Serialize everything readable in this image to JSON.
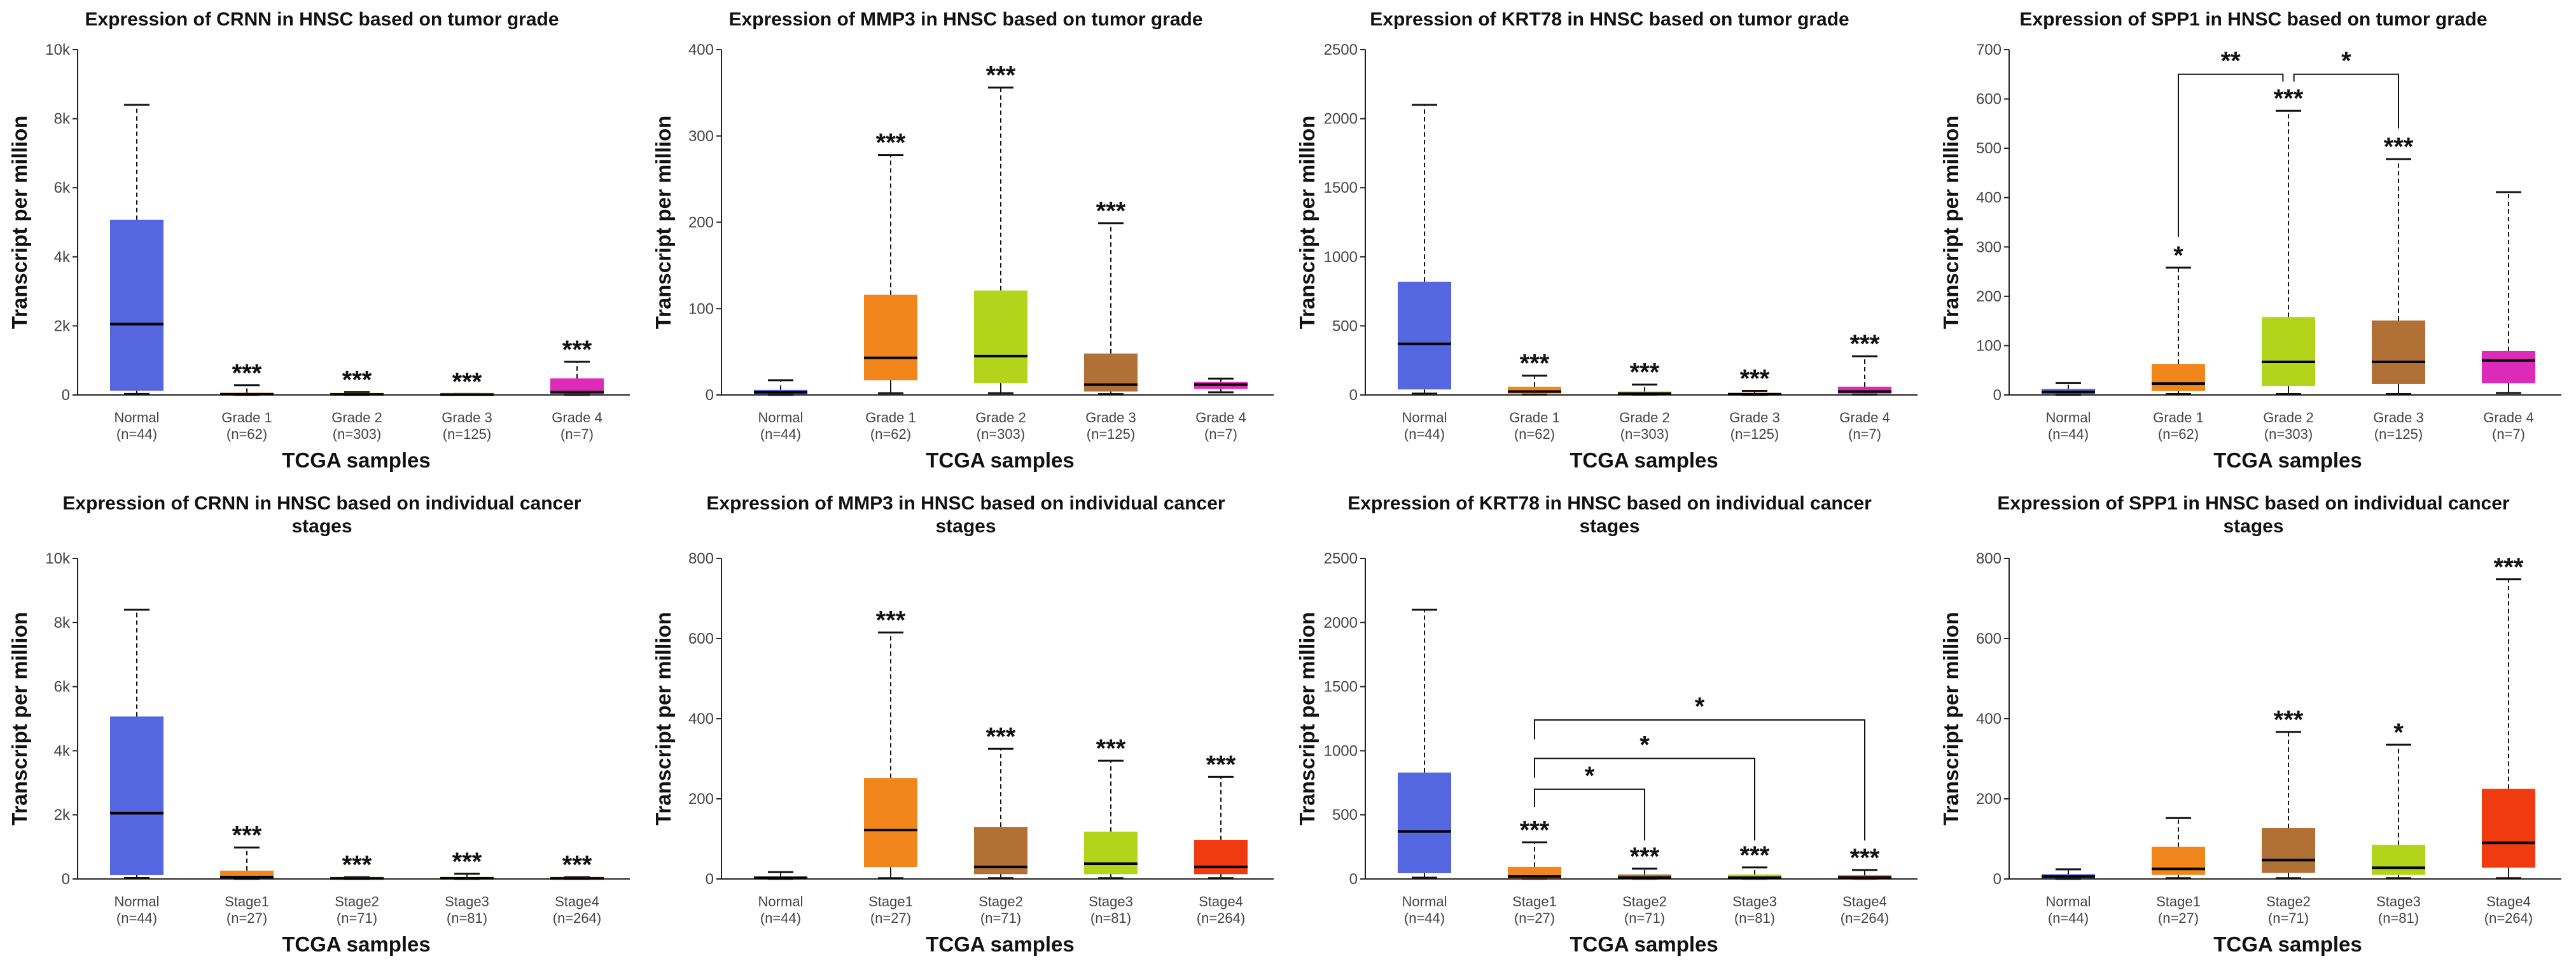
{
  "chart_data": [
    {
      "type": "box",
      "title": [
        "Expression of CRNN in HNSC based on tumor grade"
      ],
      "xlabel": "TCGA samples",
      "ylabel": "Transcript per million",
      "ylim": [
        0,
        10000
      ],
      "yticks": [
        0,
        2000,
        4000,
        6000,
        8000,
        10000
      ],
      "ytick_labels": [
        "0",
        "2k",
        "4k",
        "6k",
        "8k",
        "10k"
      ],
      "categories": [
        [
          "Normal",
          "(n=44)"
        ],
        [
          "Grade 1",
          "(n=62)"
        ],
        [
          "Grade 2",
          "(n=303)"
        ],
        [
          "Grade 3",
          "(n=125)"
        ],
        [
          "Grade 4",
          "(n=7)"
        ]
      ],
      "boxes": [
        {
          "low": 30,
          "q1": 120,
          "median": 2050,
          "q3": 5070,
          "high": 8400,
          "color": "#5567e0",
          "sig": ""
        },
        {
          "low": 0,
          "q1": 10,
          "median": 20,
          "q3": 60,
          "high": 280,
          "color": "#f0861c",
          "sig": "***"
        },
        {
          "low": 0,
          "q1": 5,
          "median": 15,
          "q3": 30,
          "high": 80,
          "color": "#b3d41a",
          "sig": "***"
        },
        {
          "low": 0,
          "q1": 3,
          "median": 8,
          "q3": 15,
          "high": 30,
          "color": "#b07036",
          "sig": "***"
        },
        {
          "low": 0,
          "q1": 30,
          "median": 80,
          "q3": 480,
          "high": 960,
          "color": "#dd2ab8",
          "sig": "***"
        }
      ],
      "brackets": []
    },
    {
      "type": "box",
      "title": [
        "Expression of MMP3 in HNSC based on tumor grade"
      ],
      "xlabel": "TCGA samples",
      "ylabel": "Transcript per million",
      "ylim": [
        0,
        400
      ],
      "yticks": [
        0,
        100,
        200,
        300,
        400
      ],
      "ytick_labels": [
        "0",
        "100",
        "200",
        "300",
        "400"
      ],
      "categories": [
        [
          "Normal",
          "(n=44)"
        ],
        [
          "Grade 1",
          "(n=62)"
        ],
        [
          "Grade 2",
          "(n=303)"
        ],
        [
          "Grade 3",
          "(n=125)"
        ],
        [
          "Grade 4",
          "(n=7)"
        ]
      ],
      "boxes": [
        {
          "low": 0,
          "q1": 1,
          "median": 3,
          "q3": 6,
          "high": 17,
          "color": "#5567e0",
          "sig": ""
        },
        {
          "low": 2,
          "q1": 17,
          "median": 43,
          "q3": 116,
          "high": 278,
          "color": "#f0861c",
          "sig": "***"
        },
        {
          "low": 2,
          "q1": 14,
          "median": 45,
          "q3": 121,
          "high": 356,
          "color": "#b3d41a",
          "sig": "***"
        },
        {
          "low": 1,
          "q1": 4,
          "median": 12,
          "q3": 48,
          "high": 199,
          "color": "#b07036",
          "sig": "***"
        },
        {
          "low": 3,
          "q1": 7,
          "median": 12,
          "q3": 15,
          "high": 19,
          "color": "#dd2ab8",
          "sig": ""
        }
      ],
      "brackets": []
    },
    {
      "type": "box",
      "title": [
        "Expression of KRT78 in HNSC based on tumor grade"
      ],
      "xlabel": "TCGA samples",
      "ylabel": "Transcript per million",
      "ylim": [
        0,
        2500
      ],
      "yticks": [
        0,
        500,
        1000,
        1500,
        2000,
        2500
      ],
      "ytick_labels": [
        "0",
        "500",
        "1000",
        "1500",
        "2000",
        "2500"
      ],
      "categories": [
        [
          "Normal",
          "(n=44)"
        ],
        [
          "Grade 1",
          "(n=62)"
        ],
        [
          "Grade 2",
          "(n=303)"
        ],
        [
          "Grade 3",
          "(n=125)"
        ],
        [
          "Grade 4",
          "(n=7)"
        ]
      ],
      "boxes": [
        {
          "low": 10,
          "q1": 40,
          "median": 370,
          "q3": 820,
          "high": 2100,
          "color": "#5567e0",
          "sig": ""
        },
        {
          "low": 2,
          "q1": 10,
          "median": 25,
          "q3": 60,
          "high": 140,
          "color": "#f0861c",
          "sig": "***"
        },
        {
          "low": 1,
          "q1": 5,
          "median": 10,
          "q3": 25,
          "high": 75,
          "color": "#b3d41a",
          "sig": "***"
        },
        {
          "low": 0,
          "q1": 2,
          "median": 5,
          "q3": 10,
          "high": 30,
          "color": "#b07036",
          "sig": "***"
        },
        {
          "low": 2,
          "q1": 10,
          "median": 25,
          "q3": 60,
          "high": 280,
          "color": "#dd2ab8",
          "sig": "***"
        }
      ],
      "brackets": []
    },
    {
      "type": "box",
      "title": [
        "Expression of SPP1 in HNSC based on tumor grade"
      ],
      "xlabel": "TCGA samples",
      "ylabel": "Transcript per million",
      "ylim": [
        0,
        700
      ],
      "yticks": [
        0,
        100,
        200,
        300,
        400,
        500,
        600,
        700
      ],
      "ytick_labels": [
        "0",
        "100",
        "200",
        "300",
        "400",
        "500",
        "600",
        "700"
      ],
      "categories": [
        [
          "Normal",
          "(n=44)"
        ],
        [
          "Grade 1",
          "(n=62)"
        ],
        [
          "Grade 2",
          "(n=303)"
        ],
        [
          "Grade 3",
          "(n=125)"
        ],
        [
          "Grade 4",
          "(n=7)"
        ]
      ],
      "boxes": [
        {
          "low": 0,
          "q1": 2,
          "median": 6,
          "q3": 12,
          "high": 24,
          "color": "#5567e0",
          "sig": ""
        },
        {
          "low": 2,
          "q1": 8,
          "median": 23,
          "q3": 63,
          "high": 258,
          "color": "#f0861c",
          "sig": "*"
        },
        {
          "low": 2,
          "q1": 18,
          "median": 67,
          "q3": 158,
          "high": 576,
          "color": "#b3d41a",
          "sig": "***"
        },
        {
          "low": 2,
          "q1": 22,
          "median": 67,
          "q3": 151,
          "high": 478,
          "color": "#b07036",
          "sig": "***"
        },
        {
          "low": 4,
          "q1": 24,
          "median": 70,
          "q3": 89,
          "high": 411,
          "color": "#dd2ab8",
          "sig": ""
        }
      ],
      "brackets": [
        {
          "from": 1,
          "to": 1.95,
          "y": 650,
          "left_end": 320,
          "right_end": 635,
          "label": "**"
        },
        {
          "from": 2.05,
          "to": 3,
          "y": 650,
          "left_end": 635,
          "right_end": 540,
          "label": "*"
        }
      ]
    },
    {
      "type": "box",
      "title": [
        "Expression of CRNN in HNSC based on individual cancer",
        "stages"
      ],
      "xlabel": "TCGA samples",
      "ylabel": "Transcript per million",
      "ylim": [
        0,
        10000
      ],
      "yticks": [
        0,
        2000,
        4000,
        6000,
        8000,
        10000
      ],
      "ytick_labels": [
        "0",
        "2k",
        "4k",
        "6k",
        "8k",
        "10k"
      ],
      "categories": [
        [
          "Normal",
          "(n=44)"
        ],
        [
          "Stage1",
          "(n=27)"
        ],
        [
          "Stage2",
          "(n=71)"
        ],
        [
          "Stage3",
          "(n=81)"
        ],
        [
          "Stage4",
          "(n=264)"
        ]
      ],
      "boxes": [
        {
          "low": 30,
          "q1": 120,
          "median": 2050,
          "q3": 5070,
          "high": 8400,
          "color": "#5567e0",
          "sig": ""
        },
        {
          "low": 0,
          "q1": 20,
          "median": 60,
          "q3": 260,
          "high": 980,
          "color": "#f0861c",
          "sig": "***"
        },
        {
          "low": 0,
          "q1": 5,
          "median": 15,
          "q3": 30,
          "high": 60,
          "color": "#b07036",
          "sig": "***"
        },
        {
          "low": 0,
          "q1": 8,
          "median": 20,
          "q3": 50,
          "high": 160,
          "color": "#b3d41a",
          "sig": "***"
        },
        {
          "low": 0,
          "q1": 5,
          "median": 15,
          "q3": 30,
          "high": 60,
          "color": "#f03a10",
          "sig": "***"
        }
      ],
      "brackets": []
    },
    {
      "type": "box",
      "title": [
        "Expression of MMP3 in HNSC based on individual cancer",
        "stages"
      ],
      "xlabel": "TCGA samples",
      "ylabel": "Transcript per million",
      "ylim": [
        0,
        800
      ],
      "yticks": [
        0,
        200,
        400,
        600,
        800
      ],
      "ytick_labels": [
        "0",
        "200",
        "400",
        "600",
        "800"
      ],
      "categories": [
        [
          "Normal",
          "(n=44)"
        ],
        [
          "Stage1",
          "(n=27)"
        ],
        [
          "Stage2",
          "(n=71)"
        ],
        [
          "Stage3",
          "(n=81)"
        ],
        [
          "Stage4",
          "(n=264)"
        ]
      ],
      "boxes": [
        {
          "low": 0,
          "q1": 1,
          "median": 3,
          "q3": 6,
          "high": 17,
          "color": "#5567e0",
          "sig": ""
        },
        {
          "low": 2,
          "q1": 30,
          "median": 122,
          "q3": 252,
          "high": 615,
          "color": "#f0861c",
          "sig": "***"
        },
        {
          "low": 2,
          "q1": 12,
          "median": 30,
          "q3": 130,
          "high": 325,
          "color": "#b07036",
          "sig": "***"
        },
        {
          "low": 2,
          "q1": 12,
          "median": 38,
          "q3": 118,
          "high": 295,
          "color": "#b3d41a",
          "sig": "***"
        },
        {
          "low": 2,
          "q1": 12,
          "median": 30,
          "q3": 97,
          "high": 255,
          "color": "#f03a10",
          "sig": "***"
        }
      ],
      "brackets": []
    },
    {
      "type": "box",
      "title": [
        "Expression of KRT78 in HNSC based on individual cancer",
        "stages"
      ],
      "xlabel": "TCGA samples",
      "ylabel": "Transcript per million",
      "ylim": [
        0,
        2500
      ],
      "yticks": [
        0,
        500,
        1000,
        1500,
        2000,
        2500
      ],
      "ytick_labels": [
        "0",
        "500",
        "1000",
        "1500",
        "2000",
        "2500"
      ],
      "categories": [
        [
          "Normal",
          "(n=44)"
        ],
        [
          "Stage1",
          "(n=27)"
        ],
        [
          "Stage2",
          "(n=71)"
        ],
        [
          "Stage3",
          "(n=81)"
        ],
        [
          "Stage4",
          "(n=264)"
        ]
      ],
      "boxes": [
        {
          "low": 10,
          "q1": 45,
          "median": 370,
          "q3": 830,
          "high": 2100,
          "color": "#5567e0",
          "sig": ""
        },
        {
          "low": 1,
          "q1": 5,
          "median": 20,
          "q3": 95,
          "high": 285,
          "color": "#f0861c",
          "sig": "***"
        },
        {
          "low": 1,
          "q1": 4,
          "median": 10,
          "q3": 35,
          "high": 80,
          "color": "#b07036",
          "sig": "***"
        },
        {
          "low": 1,
          "q1": 4,
          "median": 10,
          "q3": 35,
          "high": 90,
          "color": "#b3d41a",
          "sig": "***"
        },
        {
          "low": 1,
          "q1": 4,
          "median": 10,
          "q3": 28,
          "high": 70,
          "color": "#f03a10",
          "sig": "***"
        }
      ],
      "brackets": [
        {
          "from": 1,
          "to": 2,
          "y": 700,
          "left_end": 560,
          "right_end": 300,
          "label": "*"
        },
        {
          "from": 1,
          "to": 3,
          "y": 940,
          "left_end": 790,
          "right_end": 300,
          "label": "*"
        },
        {
          "from": 1,
          "to": 4,
          "y": 1240,
          "left_end": 1090,
          "right_end": 300,
          "label": "*"
        }
      ]
    },
    {
      "type": "box",
      "title": [
        "Expression of SPP1 in HNSC based on individual cancer",
        "stages"
      ],
      "xlabel": "TCGA samples",
      "ylabel": "Transcript per million",
      "ylim": [
        0,
        800
      ],
      "yticks": [
        0,
        200,
        400,
        600,
        800
      ],
      "ytick_labels": [
        "0",
        "200",
        "400",
        "600",
        "800"
      ],
      "categories": [
        [
          "Normal",
          "(n=44)"
        ],
        [
          "Stage1",
          "(n=27)"
        ],
        [
          "Stage2",
          "(n=71)"
        ],
        [
          "Stage3",
          "(n=81)"
        ],
        [
          "Stage4",
          "(n=264)"
        ]
      ],
      "boxes": [
        {
          "low": 0,
          "q1": 2,
          "median": 6,
          "q3": 12,
          "high": 24,
          "color": "#5567e0",
          "sig": ""
        },
        {
          "low": 2,
          "q1": 10,
          "median": 25,
          "q3": 80,
          "high": 152,
          "color": "#f0861c",
          "sig": ""
        },
        {
          "low": 2,
          "q1": 15,
          "median": 47,
          "q3": 127,
          "high": 367,
          "color": "#b07036",
          "sig": "***"
        },
        {
          "low": 2,
          "q1": 10,
          "median": 28,
          "q3": 85,
          "high": 335,
          "color": "#b3d41a",
          "sig": "*"
        },
        {
          "low": 2,
          "q1": 28,
          "median": 90,
          "q3": 225,
          "high": 748,
          "color": "#f03a10",
          "sig": "***"
        }
      ],
      "brackets": []
    }
  ]
}
